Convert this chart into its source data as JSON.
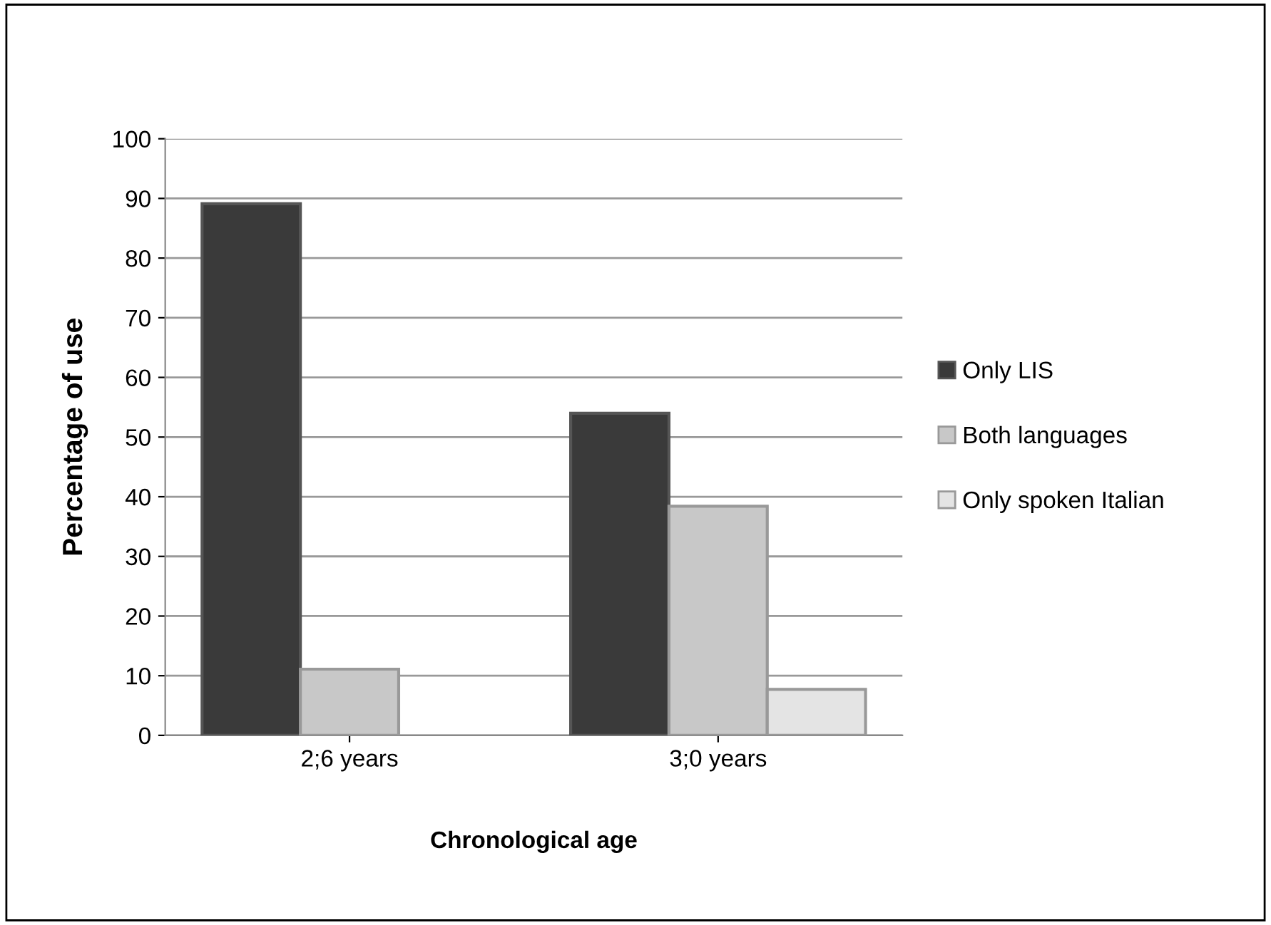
{
  "chart_data": {
    "type": "bar",
    "xlabel": "Chronological age",
    "ylabel": "Percentage of use",
    "categories": [
      "2;6 years",
      "3;0 years"
    ],
    "series": [
      {
        "name": "Only LIS",
        "color": "#3a3a3a",
        "values": [
          89.1,
          54
        ]
      },
      {
        "name": "Both languages",
        "color": "#c8c8c8",
        "values": [
          11.1,
          38.4
        ]
      },
      {
        "name": "Only spoken Italian",
        "color": "#e4e4e4",
        "values": [
          null,
          7.7
        ]
      }
    ],
    "ylim": [
      0,
      100
    ],
    "yticks": [
      0,
      10,
      20,
      30,
      40,
      50,
      60,
      70,
      80,
      90,
      100
    ],
    "grid": "y",
    "legend": "right"
  }
}
